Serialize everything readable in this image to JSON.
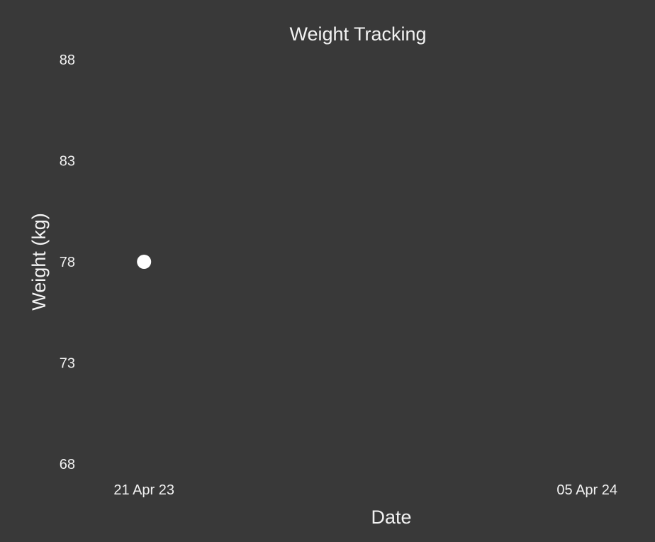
{
  "chart_data": {
    "type": "scatter",
    "title": "Weight Tracking",
    "xlabel": "Date",
    "ylabel": "Weight (kg)",
    "x_ticks": [
      "21 Apr 23",
      "05 Apr 24"
    ],
    "y_ticks": [
      68,
      73,
      78,
      83,
      88
    ],
    "ylim": [
      68,
      88
    ],
    "xlim": [
      "2023-03-11",
      "2024-05-04"
    ],
    "grid": false,
    "points": [
      {
        "x": "2023-04-21",
        "y": 78
      }
    ],
    "colors": {
      "background": "#393939",
      "text": "#f2f2f2",
      "marker": "#ffffff"
    }
  }
}
